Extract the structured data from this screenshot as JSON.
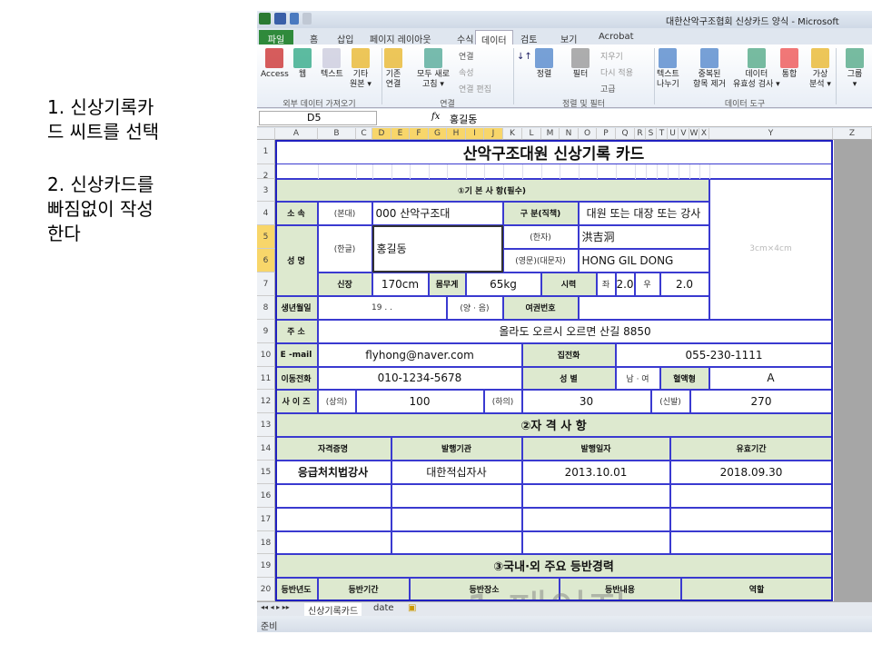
{
  "instructions": [
    "1. 신상기록카\n드 씨트를 선택",
    "2. 신상카드를\n빠짐없이 작성\n한다"
  ],
  "window": {
    "title": "대한산악구조협회 신상카드 양식 - Microsoft"
  },
  "tabs": [
    "파일",
    "홈",
    "삽입",
    "페이지 레이아웃",
    "수식",
    "데이터",
    "검토",
    "보기",
    "Acrobat"
  ],
  "active_tab": "데이터",
  "ribbon": {
    "buttons": [
      "Access",
      "웹",
      "텍스트",
      "기타\n원본 ▾",
      "기존\n연결",
      "모두 새로\n고침 ▾",
      "정렬",
      "필터",
      "텍스트\n나누기",
      "중복된\n항목 제거",
      "데이터\n유효성 검사 ▾",
      "통합",
      "가상\n분석 ▾",
      "그룹\n▾"
    ],
    "small": [
      "연결",
      "속성",
      "연결 편집",
      "지우기",
      "다시 적용",
      "고급"
    ],
    "groups": [
      "외부 데이터 가져오기",
      "연결",
      "정렬 및 필터",
      "데이터 도구"
    ]
  },
  "formula_bar": {
    "name_box": "D5",
    "fx": "fx",
    "value": "홍길동"
  },
  "columns": [
    "A",
    "B",
    "C",
    "D",
    "E",
    "F",
    "G",
    "H",
    "I",
    "J",
    "K",
    "L",
    "M",
    "N",
    "O",
    "P",
    "Q",
    "R",
    "S",
    "T",
    "U",
    "V",
    "W",
    "X",
    "Y",
    "Z"
  ],
  "rows": [
    "1",
    "2",
    "3",
    "4",
    "5",
    "6",
    "7",
    "8",
    "9",
    "10",
    "11",
    "12",
    "13",
    "14",
    "15",
    "16",
    "17",
    "18",
    "19",
    "20"
  ],
  "card": {
    "title": "산악구조대원 신상기록 카드",
    "basic_header": "①기 본 사 항(필수)",
    "affiliation_label": "소 속",
    "affiliation_sub": "(본대)",
    "affiliation": "000 산악구조대",
    "position_label": "구 분(직책)",
    "position": "대원 또는 대장 또는 강사",
    "photo": "3cm×4cm",
    "name_label": "성 명",
    "hangul_label": "(한글)",
    "name_hangul": "홍길동",
    "hanja_label": "(한자)",
    "name_hanja": "洪吉洞",
    "english_label": "(영문)(대문자)",
    "name_english": "HONG GIL DONG",
    "height_label": "신장",
    "height": "170cm",
    "weight_label": "몸무게",
    "weight": "65kg",
    "vision_label": "시력",
    "left_label": "좌",
    "left_vision": "2.0",
    "right_label": "우",
    "right_vision": "2.0",
    "birth_label": "생년월일",
    "birth": "19 . .",
    "calendar": "(양 · 음)",
    "passport_label": "여권번호",
    "passport": "",
    "address_label": "주 소",
    "address": "올라도 오르시 오르면 산길 8850",
    "email_label": "E -mail",
    "email": "flyhong@naver.com",
    "home_phone_label": "집전화",
    "home_phone": "055-230-1111",
    "mobile_label": "이동전화",
    "mobile": "010-1234-5678",
    "gender_label": "성 별",
    "gender": "남 · 여",
    "blood_label": "혈액형",
    "blood": "A",
    "size_label": "사 이 즈",
    "top_label": "(상의)",
    "top": "100",
    "bottom_label": "(하의)",
    "bottom": "30",
    "shoe_label": "(신발)",
    "shoe": "270",
    "cert_header": "②자 격 사 항",
    "cert_columns": [
      "자격증명",
      "발행기관",
      "발행일자",
      "유효기간"
    ],
    "certs": [
      [
        "응급처치법강사",
        "대한적십자사",
        "2013.10.01",
        "2018.09.30"
      ],
      [
        "",
        "",
        "",
        ""
      ],
      [
        "",
        "",
        "",
        ""
      ],
      [
        "",
        "",
        "",
        ""
      ]
    ],
    "climb_header": "③국내·외 주요 등반경력",
    "climb_columns": [
      "등반년도",
      "등반기간",
      "등반장소",
      "등반내용",
      "역할"
    ]
  },
  "watermark": "1 페이지",
  "sheet_tabs": [
    "신상기록카드",
    "date"
  ],
  "status": "준비"
}
